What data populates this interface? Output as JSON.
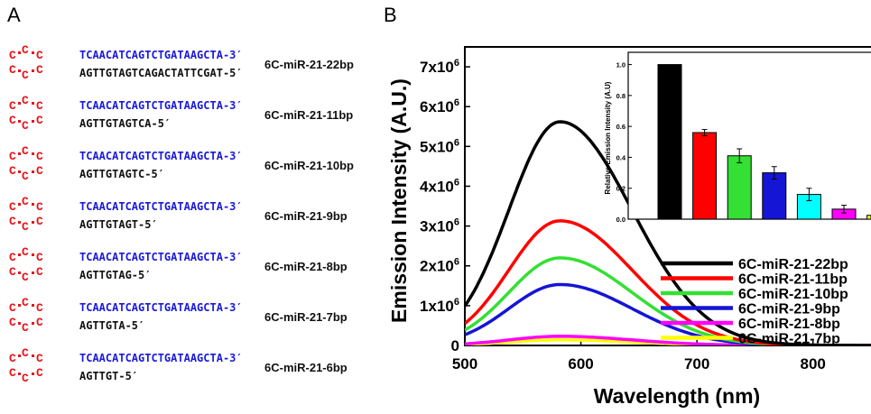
{
  "panel_a": {
    "letter": "A",
    "loop_chars": [
      "C",
      "C",
      "C",
      "C",
      "C",
      "C"
    ],
    "constructs": [
      {
        "top_strand": "TCAACATCAGTCTGATAAGCTA-3′",
        "bottom_strand": "AGTTGTAGTCAGACTATTCGAT-5′",
        "name": "6C-miR-21-22bp"
      },
      {
        "top_strand": "TCAACATCAGTCTGATAAGCTA-3′",
        "bottom_strand": "AGTTGTAGTCA-5′",
        "name": "6C-miR-21-11bp"
      },
      {
        "top_strand": "TCAACATCAGTCTGATAAGCTA-3′",
        "bottom_strand": "AGTTGTAGTC-5′",
        "name": "6C-miR-21-10bp"
      },
      {
        "top_strand": "TCAACATCAGTCTGATAAGCTA-3′",
        "bottom_strand": "AGTTGTAGT-5′",
        "name": "6C-miR-21-9bp"
      },
      {
        "top_strand": "TCAACATCAGTCTGATAAGCTA-3′",
        "bottom_strand": "AGTTGTAG-5′",
        "name": "6C-miR-21-8bp"
      },
      {
        "top_strand": "TCAACATCAGTCTGATAAGCTA-3′",
        "bottom_strand": "AGTTGTA-5′",
        "name": "6C-miR-21-7bp"
      },
      {
        "top_strand": "TCAACATCAGTCTGATAAGCTA-3′",
        "bottom_strand": "AGTTGT-5′",
        "name": "6C-miR-21-6bp"
      }
    ],
    "colors": {
      "loop": "#e8141b",
      "top_strand": "#1a1adb",
      "bottom_strand": "#111111"
    }
  },
  "panel_b": {
    "letter": "B"
  },
  "chart_data": [
    {
      "type": "line",
      "xlabel": "Wavelength (nm)",
      "ylabel": "Emission Intensity (A.U.)",
      "xlim": [
        500,
        850
      ],
      "ylim": [
        0,
        7500000
      ],
      "x_ticks": [
        500,
        600,
        700,
        800
      ],
      "x_tick_labels": [
        "500",
        "600",
        "700",
        "800"
      ],
      "y_ticks": [
        0,
        1000000,
        2000000,
        3000000,
        4000000,
        5000000,
        6000000,
        7000000
      ],
      "y_tick_labels": [
        "0",
        "1x10^6",
        "2x10^6",
        "3x10^6",
        "4x10^6",
        "5x10^6",
        "6x10^6",
        "7x10^6"
      ],
      "legend_position": "lower-right",
      "grid": false,
      "peak_wavelength": 582,
      "series": [
        {
          "name": "6C-miR-21-22bp",
          "color": "#000000",
          "peak": 5620000
        },
        {
          "name": "6C-miR-21-11bp",
          "color": "#ff0000",
          "peak": 3130000
        },
        {
          "name": "6C-miR-21-10bp",
          "color": "#33e033",
          "peak": 2200000
        },
        {
          "name": "6C-miR-21-9bp",
          "color": "#1515d6",
          "peak": 1530000
        },
        {
          "name": "6C-miR-21-8bp",
          "color": "#ff00ff",
          "peak": 230000
        },
        {
          "name": "6C-miR-21-7bp",
          "color": "#ffff00",
          "peak": 140000
        }
      ]
    },
    {
      "type": "bar",
      "ylabel": "Relative Emission Intensity (A.U)",
      "ylim": [
        0,
        1.05
      ],
      "y_ticks": [
        0,
        0.2,
        0.4,
        0.6,
        0.8,
        1.0
      ],
      "y_tick_labels": [
        "0.0",
        "0.2",
        "0.4",
        "0.6",
        "0.8",
        "1.0"
      ],
      "categories": [
        "6C-miR-21-22bp",
        "6C-miR-21-11bp",
        "6C-miR-21-10bp",
        "6C-miR-21-9bp",
        "6C-miR-21-8bp",
        "6C-miR-21-7bp"
      ],
      "values": [
        1.0,
        0.56,
        0.41,
        0.3,
        0.16,
        0.065
      ],
      "errors": [
        0,
        0.02,
        0.045,
        0.04,
        0.04,
        0.025
      ],
      "colors": [
        "#000000",
        "#ff0000",
        "#33e033",
        "#1515d6",
        "#00ffff",
        "#ff00ff"
      ],
      "partial_bar_value": 0.025,
      "partial_bar_color": "#ffff00"
    }
  ]
}
